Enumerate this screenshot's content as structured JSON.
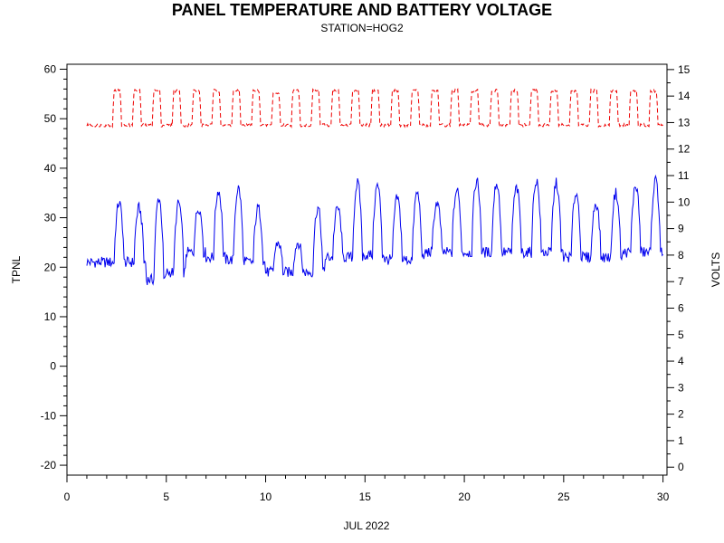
{
  "chart_data": {
    "type": "line",
    "title": "PANEL TEMPERATURE AND BATTERY VOLTAGE",
    "subtitle": "STATION=HOG2",
    "xlabel": "JUL 2022",
    "ylabel_left": "TPNL",
    "ylabel_right": "VOLTS",
    "xlim": [
      0,
      30.2
    ],
    "ylim_left": [
      -22,
      61
    ],
    "ylim_right": [
      -0.3,
      15.2
    ],
    "x_ticks": [
      0,
      5,
      10,
      15,
      20,
      25,
      30
    ],
    "y_left_ticks": [
      -20,
      -10,
      0,
      10,
      20,
      30,
      40,
      50,
      60
    ],
    "y_right_ticks": [
      0,
      1,
      2,
      3,
      4,
      5,
      6,
      7,
      8,
      9,
      10,
      11,
      12,
      13,
      14,
      15
    ],
    "x_tick_labels": [
      "0",
      "5",
      "10",
      "15",
      "20",
      "25",
      "30"
    ],
    "y_left_tick_labels": [
      "-20",
      "-10",
      "0",
      "10",
      "20",
      "30",
      "40",
      "50",
      "60"
    ],
    "y_right_tick_labels": [
      "0",
      "1",
      "2",
      "3",
      "4",
      "5",
      "6",
      "7",
      "8",
      "9",
      "10",
      "11",
      "12",
      "13",
      "14",
      "15"
    ],
    "grid": false,
    "series": [
      {
        "axis": "left",
        "color": "#0000ee",
        "style": "solid",
        "daily": [
          {
            "day": 1,
            "min": 21,
            "max": 21
          },
          {
            "day": 2,
            "min": 21,
            "max": 33
          },
          {
            "day": 3,
            "min": 21,
            "max": 32
          },
          {
            "day": 4,
            "min": 17.5,
            "max": 34
          },
          {
            "day": 5,
            "min": 19,
            "max": 33
          },
          {
            "day": 6,
            "min": 23,
            "max": 32
          },
          {
            "day": 7,
            "min": 22,
            "max": 35.5
          },
          {
            "day": 8,
            "min": 21.5,
            "max": 36
          },
          {
            "day": 9,
            "min": 21,
            "max": 32
          },
          {
            "day": 10,
            "min": 19,
            "max": 25
          },
          {
            "day": 11,
            "min": 19,
            "max": 25
          },
          {
            "day": 12,
            "min": 19,
            "max": 32
          },
          {
            "day": 13,
            "min": 22,
            "max": 32
          },
          {
            "day": 14,
            "min": 22,
            "max": 37
          },
          {
            "day": 15,
            "min": 22.5,
            "max": 36.5
          },
          {
            "day": 16,
            "min": 21.5,
            "max": 34
          },
          {
            "day": 17,
            "min": 21.5,
            "max": 35
          },
          {
            "day": 18,
            "min": 23,
            "max": 33
          },
          {
            "day": 19,
            "min": 23,
            "max": 35.5
          },
          {
            "day": 20,
            "min": 23,
            "max": 37.5
          },
          {
            "day": 21,
            "min": 23,
            "max": 37
          },
          {
            "day": 22,
            "min": 23,
            "max": 36
          },
          {
            "day": 23,
            "min": 23,
            "max": 37.5
          },
          {
            "day": 24,
            "min": 23,
            "max": 37
          },
          {
            "day": 25,
            "min": 22,
            "max": 35
          },
          {
            "day": 26,
            "min": 22,
            "max": 33
          },
          {
            "day": 27,
            "min": 22,
            "max": 35
          },
          {
            "day": 28,
            "min": 23,
            "max": 36.5
          },
          {
            "day": 29,
            "min": 23,
            "max": 37.5
          },
          {
            "day": 30,
            "min": 22,
            "max": 33
          }
        ]
      },
      {
        "axis": "right",
        "color": "#ee0000",
        "style": "dashed",
        "daily": [
          {
            "day": 1,
            "min": 12.9,
            "max": 12.9
          },
          {
            "day": 2,
            "min": 12.9,
            "max": 14.2
          },
          {
            "day": 3,
            "min": 12.9,
            "max": 14.2
          },
          {
            "day": 4,
            "min": 12.9,
            "max": 14.2
          },
          {
            "day": 5,
            "min": 12.9,
            "max": 14.2
          },
          {
            "day": 6,
            "min": 12.9,
            "max": 14.2
          },
          {
            "day": 7,
            "min": 12.9,
            "max": 14.2
          },
          {
            "day": 8,
            "min": 12.9,
            "max": 14.2
          },
          {
            "day": 9,
            "min": 12.9,
            "max": 14.2
          },
          {
            "day": 10,
            "min": 12.9,
            "max": 14.1
          },
          {
            "day": 11,
            "min": 12.9,
            "max": 14.2
          },
          {
            "day": 12,
            "min": 12.9,
            "max": 14.2
          },
          {
            "day": 13,
            "min": 12.9,
            "max": 14.2
          },
          {
            "day": 14,
            "min": 12.9,
            "max": 14.2
          },
          {
            "day": 15,
            "min": 12.9,
            "max": 14.2
          },
          {
            "day": 16,
            "min": 12.9,
            "max": 14.2
          },
          {
            "day": 17,
            "min": 12.9,
            "max": 14.2
          },
          {
            "day": 18,
            "min": 12.9,
            "max": 14.2
          },
          {
            "day": 19,
            "min": 12.9,
            "max": 14.2
          },
          {
            "day": 20,
            "min": 12.9,
            "max": 14.2
          },
          {
            "day": 21,
            "min": 12.9,
            "max": 14.2
          },
          {
            "day": 22,
            "min": 12.9,
            "max": 14.2
          },
          {
            "day": 23,
            "min": 12.9,
            "max": 14.2
          },
          {
            "day": 24,
            "min": 12.9,
            "max": 14.2
          },
          {
            "day": 25,
            "min": 12.9,
            "max": 14.2
          },
          {
            "day": 26,
            "min": 12.9,
            "max": 14.2
          },
          {
            "day": 27,
            "min": 12.9,
            "max": 14.2
          },
          {
            "day": 28,
            "min": 12.9,
            "max": 14.2
          },
          {
            "day": 29,
            "min": 12.9,
            "max": 14.2
          },
          {
            "day": 30,
            "min": 12.9,
            "max": 14.2
          }
        ]
      }
    ]
  }
}
